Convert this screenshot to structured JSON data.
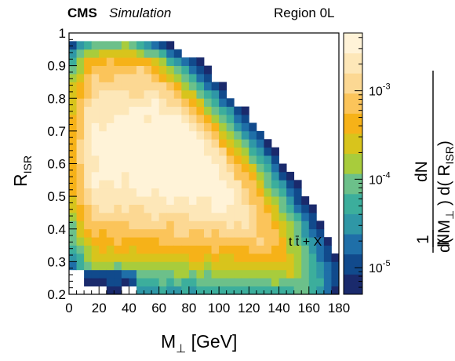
{
  "header": {
    "experiment": "CMS",
    "label": "Simulation",
    "region": "Region 0L"
  },
  "chart_data": {
    "type": "heatmap",
    "annotation": "t t̄ + X",
    "xlabel": "M⊥ [GeV]",
    "ylabel": "R_ISR",
    "xlim": [
      0,
      180
    ],
    "ylim": [
      0.2,
      1.0
    ],
    "x_ticks": [
      0,
      20,
      40,
      60,
      80,
      100,
      120,
      140,
      160,
      180
    ],
    "y_ticks": [
      0.2,
      0.3,
      0.4,
      0.5,
      0.6,
      0.7,
      0.8,
      0.9,
      1.0
    ],
    "z_scale": "log",
    "z_range": [
      5e-06,
      0.0045
    ],
    "z_ticks": [
      {
        "value": 1e-05,
        "label": "10",
        "exp": "-5"
      },
      {
        "value": 0.0001,
        "label": "10",
        "exp": "-4"
      },
      {
        "value": 0.001,
        "label": "10",
        "exp": "-3"
      }
    ],
    "zlabel": {
      "top": "dN",
      "bottom": "d( M⊥ ) d( R_ISR )",
      "prefix_num": "1",
      "prefix_den": "N"
    },
    "colors": [
      "#1a2a6c",
      "#114a8c",
      "#1f6fa8",
      "#2f97a6",
      "#3cae9c",
      "#6cc08a",
      "#a8cc3c",
      "#d8c41c",
      "#f6b218",
      "#fbc45a",
      "#fcd893",
      "#fde7b8",
      "#fff3d8"
    ],
    "bins_x": 36,
    "bins_y": 32,
    "x_bin_width": 5,
    "y_bin_width": 0.025
  }
}
